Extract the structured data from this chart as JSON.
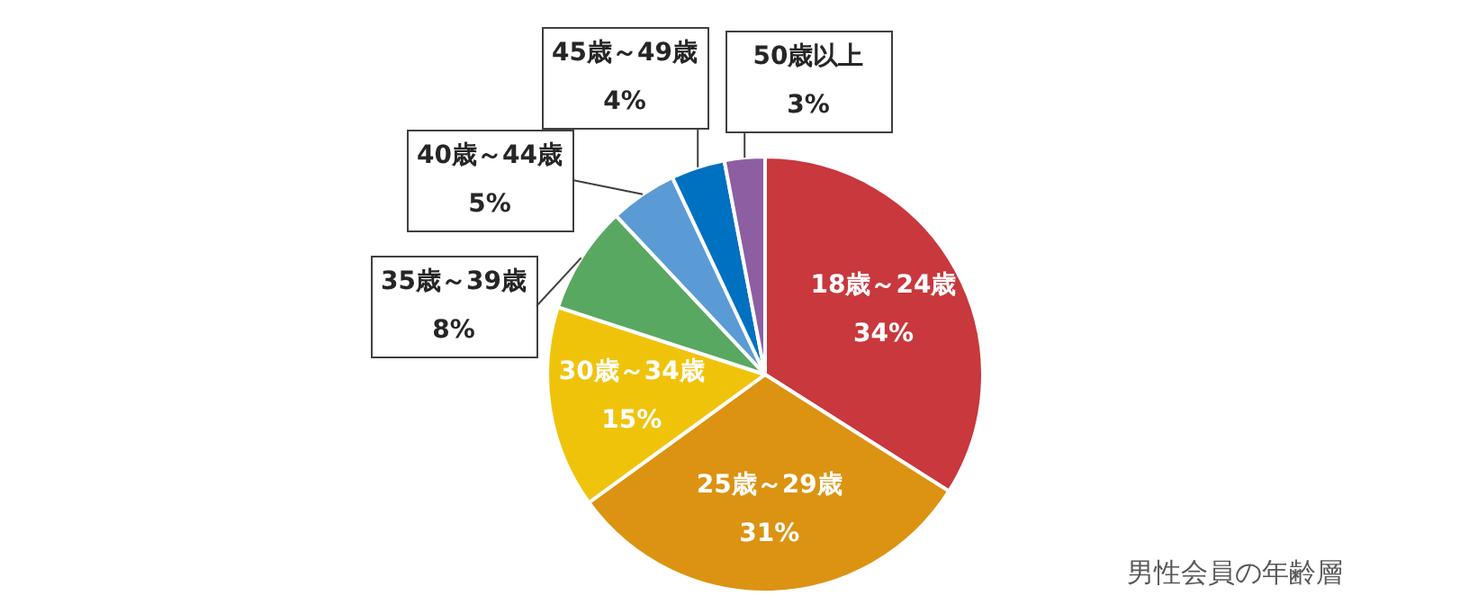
{
  "chart_data": {
    "type": "pie",
    "categories": [
      "18歳～24歳",
      "25歳～29歳",
      "30歳～34歳",
      "35歳～39歳",
      "40歳～44歳",
      "45歳～49歳",
      "50歳以上"
    ],
    "values": [
      34,
      31,
      15,
      8,
      5,
      4,
      3
    ],
    "value_labels": [
      "34%",
      "31%",
      "15%",
      "8%",
      "5%",
      "4%",
      "3%"
    ],
    "colors": [
      "#c8383d",
      "#dc9312",
      "#f0c30b",
      "#59a862",
      "#5b9bd5",
      "#0070c0",
      "#8e5ea2"
    ],
    "legend": false,
    "annotations": [
      "男性会員の年齢層"
    ]
  }
}
